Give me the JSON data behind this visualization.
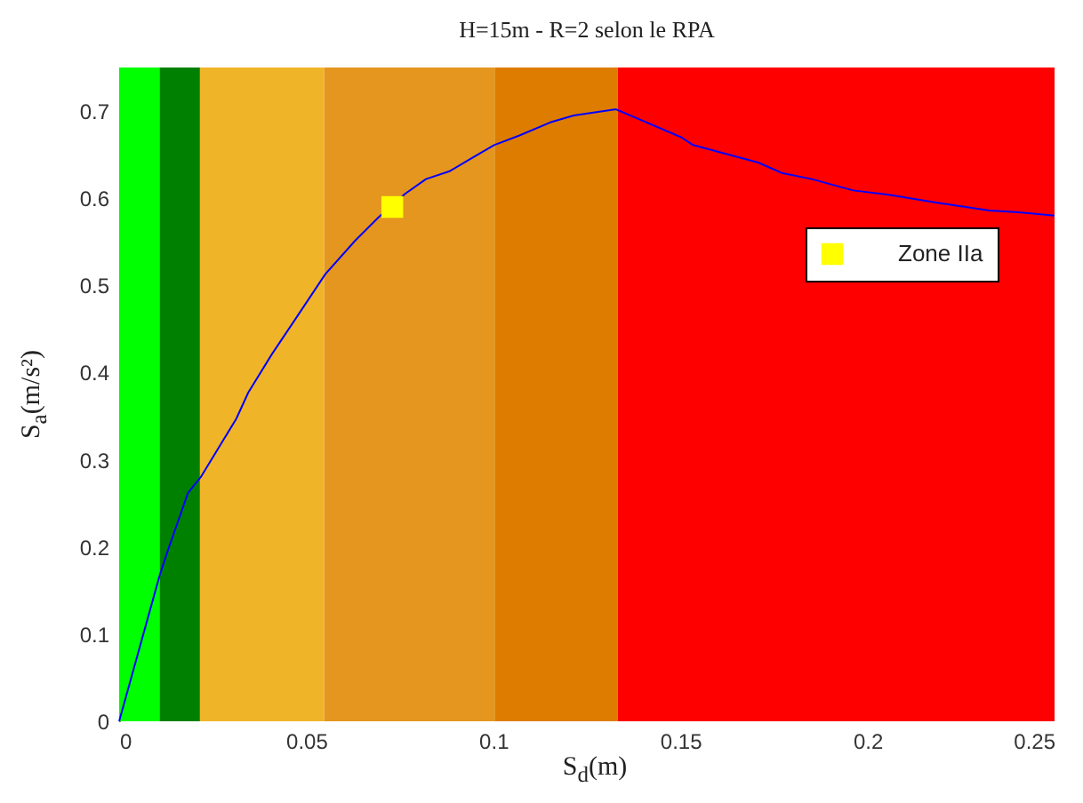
{
  "chart_data": {
    "type": "line",
    "title": "H=15m - R=2 selon le RPA",
    "xlabel": "S$_{d}$(m)",
    "ylabel": "S$_{a}$(m/s²)",
    "xlim": [
      0,
      0.25
    ],
    "xticks": [
      0,
      0.05,
      0.1,
      0.15,
      0.2,
      0.25
    ],
    "ylim": [
      0,
      0.75
    ],
    "yticks": [
      0,
      0.1,
      0.2,
      0.3,
      0.4,
      0.5,
      0.6,
      0.7
    ],
    "grid": false,
    "legend": "top right",
    "line_style": "solid",
    "marker": "none",
    "bands": [
      {
        "axis": "x",
        "from": 0,
        "to": 0.0108,
        "color": "#00ff00"
      },
      {
        "axis": "x",
        "from": 0.0108,
        "to": 0.0216,
        "color": "#008000"
      },
      {
        "axis": "x",
        "from": 0.0216,
        "to": 0.0548,
        "color": "#f0b428"
      },
      {
        "axis": "x",
        "from": 0.0548,
        "to": 0.1005,
        "color": "#e4961e"
      },
      {
        "axis": "x",
        "from": 0.1005,
        "to": 0.1333,
        "color": "#de7c00"
      },
      {
        "axis": "x",
        "from": 0.1333,
        "to": 0.25,
        "color": "#ff0000"
      }
    ],
    "series": [
      {
        "type": "line",
        "color": "#0000ff",
        "x": [
          0,
          0.0108,
          0.0131,
          0.0184,
          0.0218,
          0.0313,
          0.0345,
          0.0408,
          0.0472,
          0.0551,
          0.063,
          0.0693,
          0.0764,
          0.082,
          0.0883,
          0.0946,
          0.1002,
          0.107,
          0.1152,
          0.1215,
          0.1328,
          0.1502,
          0.1534,
          0.1708,
          0.1771,
          0.1851,
          0.1962,
          0.2057,
          0.2183,
          0.2326,
          0.2405,
          0.25
        ],
        "values": [
          0,
          0.167,
          0.197,
          0.262,
          0.28,
          0.347,
          0.377,
          0.421,
          0.462,
          0.513,
          0.551,
          0.578,
          0.605,
          0.622,
          0.631,
          0.647,
          0.661,
          0.672,
          0.687,
          0.695,
          0.702,
          0.67,
          0.661,
          0.641,
          0.629,
          0.622,
          0.609,
          0.604,
          0.595,
          0.586,
          0.584,
          0.58
        ]
      },
      {
        "type": "scatter",
        "name": "Zone IIa",
        "color": "#ffff00",
        "marker": "square",
        "x": [
          0.073
        ],
        "values": [
          0.59
        ]
      }
    ]
  }
}
